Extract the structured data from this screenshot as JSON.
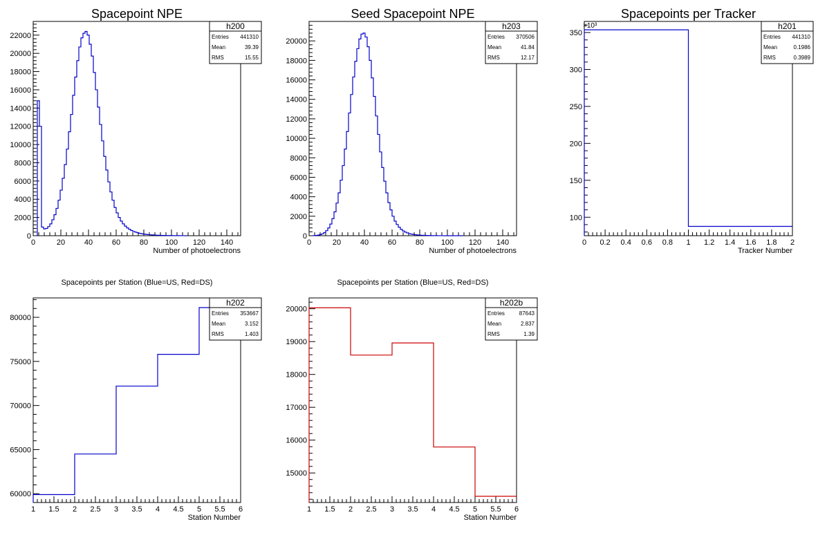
{
  "chart_data": [
    {
      "id": "h200",
      "type": "step",
      "title": "Spacepoint NPE",
      "xlabel": "Number of photoelectrons",
      "ylabel": "",
      "xlim": [
        0,
        150
      ],
      "ylim": [
        0,
        23500
      ],
      "xticks": [
        0,
        20,
        40,
        60,
        80,
        100,
        120,
        140
      ],
      "yticks": [
        0,
        2000,
        4000,
        6000,
        8000,
        10000,
        12000,
        14000,
        16000,
        18000,
        20000,
        22000
      ],
      "exponent_label": "",
      "color": "#0000cc",
      "bin_width": 1.5,
      "x_start": 3,
      "values": [
        14800,
        12000,
        950,
        750,
        800,
        1000,
        1300,
        1750,
        2300,
        3000,
        3900,
        5000,
        6300,
        7800,
        9500,
        11400,
        13300,
        15400,
        17400,
        19200,
        20700,
        21700,
        22200,
        22400,
        22000,
        21000,
        19700,
        17900,
        16000,
        14100,
        12200,
        10400,
        8700,
        7200,
        5900,
        4800,
        3900,
        3100,
        2500,
        2000,
        1600,
        1300,
        1050,
        850,
        700,
        570,
        470,
        390,
        320,
        260,
        220,
        180,
        150,
        120,
        100,
        85,
        70,
        60,
        50,
        40,
        35,
        30,
        25,
        20,
        18,
        15,
        12,
        10,
        8,
        6,
        4,
        2
      ],
      "stats": {
        "name": "h200",
        "rows": [
          {
            "label": "Entries",
            "value": "441310"
          },
          {
            "label": "Mean",
            "value": "39.39"
          },
          {
            "label": "RMS",
            "value": "15.55"
          }
        ]
      }
    },
    {
      "id": "h203",
      "type": "step",
      "title": "Seed Spacepoint NPE",
      "xlabel": "Number of photoelectrons",
      "ylabel": "",
      "xlim": [
        0,
        150
      ],
      "ylim": [
        0,
        22000
      ],
      "xticks": [
        0,
        20,
        40,
        60,
        80,
        100,
        120,
        140
      ],
      "yticks": [
        0,
        2000,
        4000,
        6000,
        8000,
        10000,
        12000,
        14000,
        16000,
        18000,
        20000
      ],
      "exponent_label": "",
      "color": "#0000cc",
      "bin_width": 1.5,
      "x_start": 3,
      "values": [
        10,
        30,
        60,
        110,
        190,
        320,
        520,
        800,
        1200,
        1750,
        2450,
        3350,
        4400,
        5700,
        7200,
        8900,
        10700,
        12600,
        14500,
        16300,
        17900,
        19200,
        20200,
        20700,
        20800,
        20400,
        19400,
        18000,
        16200,
        14300,
        12300,
        10400,
        8600,
        7000,
        5600,
        4400,
        3400,
        2650,
        2000,
        1500,
        1150,
        870,
        650,
        490,
        370,
        280,
        210,
        160,
        120,
        95,
        75,
        58,
        45,
        35,
        27,
        20,
        16,
        12,
        9,
        7,
        5,
        4,
        3,
        2,
        2,
        1,
        1,
        1,
        1,
        1,
        1,
        1
      ],
      "stats": {
        "name": "h203",
        "rows": [
          {
            "label": "Entries",
            "value": "370506"
          },
          {
            "label": "Mean",
            "value": "41.84"
          },
          {
            "label": "RMS",
            "value": "12.17"
          }
        ]
      }
    },
    {
      "id": "h201",
      "type": "step",
      "title": "Spacepoints per Tracker",
      "xlabel": "Tracker Number",
      "ylabel": "",
      "xlim": [
        0,
        2
      ],
      "ylim": [
        75,
        365
      ],
      "xticks": [
        0,
        0.2,
        0.4,
        0.6,
        0.8,
        1,
        1.2,
        1.4,
        1.6,
        1.8,
        2
      ],
      "yticks": [
        100,
        150,
        200,
        250,
        300,
        350
      ],
      "exponent_label": "×10³",
      "color": "#0000cc",
      "bin_width": 1,
      "x_start": 0,
      "values": [
        353.667,
        87.643
      ],
      "stats": {
        "name": "h201",
        "rows": [
          {
            "label": "Entries",
            "value": "441310"
          },
          {
            "label": "Mean",
            "value": "0.1986"
          },
          {
            "label": "RMS",
            "value": "0.3989"
          }
        ]
      }
    },
    {
      "id": "h202",
      "type": "step",
      "title": "Spacepoints per Station (Blue=US, Red=DS)",
      "xlabel": "Station Number",
      "ylabel": "",
      "xlim": [
        1,
        6
      ],
      "ylim": [
        59000,
        82200
      ],
      "xticks": [
        1,
        1.5,
        2,
        2.5,
        3,
        3.5,
        4,
        4.5,
        5,
        5.5,
        6
      ],
      "yticks": [
        60000,
        65000,
        70000,
        75000,
        80000
      ],
      "exponent_label": "",
      "color": "#0000cc",
      "bin_width": 1,
      "x_start": 1,
      "values": [
        59900,
        64500,
        72200,
        75800,
        81100
      ],
      "stats": {
        "name": "h202",
        "rows": [
          {
            "label": "Entries",
            "value": "353667"
          },
          {
            "label": "Mean",
            "value": "3.152"
          },
          {
            "label": "RMS",
            "value": "1.403"
          }
        ]
      }
    },
    {
      "id": "h202b",
      "type": "step",
      "title": "Spacepoints per Station (Blue=US, Red=DS)",
      "xlabel": "Station Number",
      "ylabel": "",
      "xlim": [
        1,
        6
      ],
      "ylim": [
        14100,
        20330
      ],
      "xticks": [
        1,
        1.5,
        2,
        2.5,
        3,
        3.5,
        4,
        4.5,
        5,
        5.5,
        6
      ],
      "yticks": [
        15000,
        16000,
        17000,
        18000,
        19000,
        20000
      ],
      "exponent_label": "",
      "color": "#cc0000",
      "bin_width": 1,
      "x_start": 1,
      "values": [
        20030,
        18590,
        18960,
        15790,
        14290
      ],
      "stats": {
        "name": "h202b",
        "rows": [
          {
            "label": "Entries",
            "value": "87643"
          },
          {
            "label": "Mean",
            "value": "2.837"
          },
          {
            "label": "RMS",
            "value": "1.39"
          }
        ]
      }
    }
  ]
}
